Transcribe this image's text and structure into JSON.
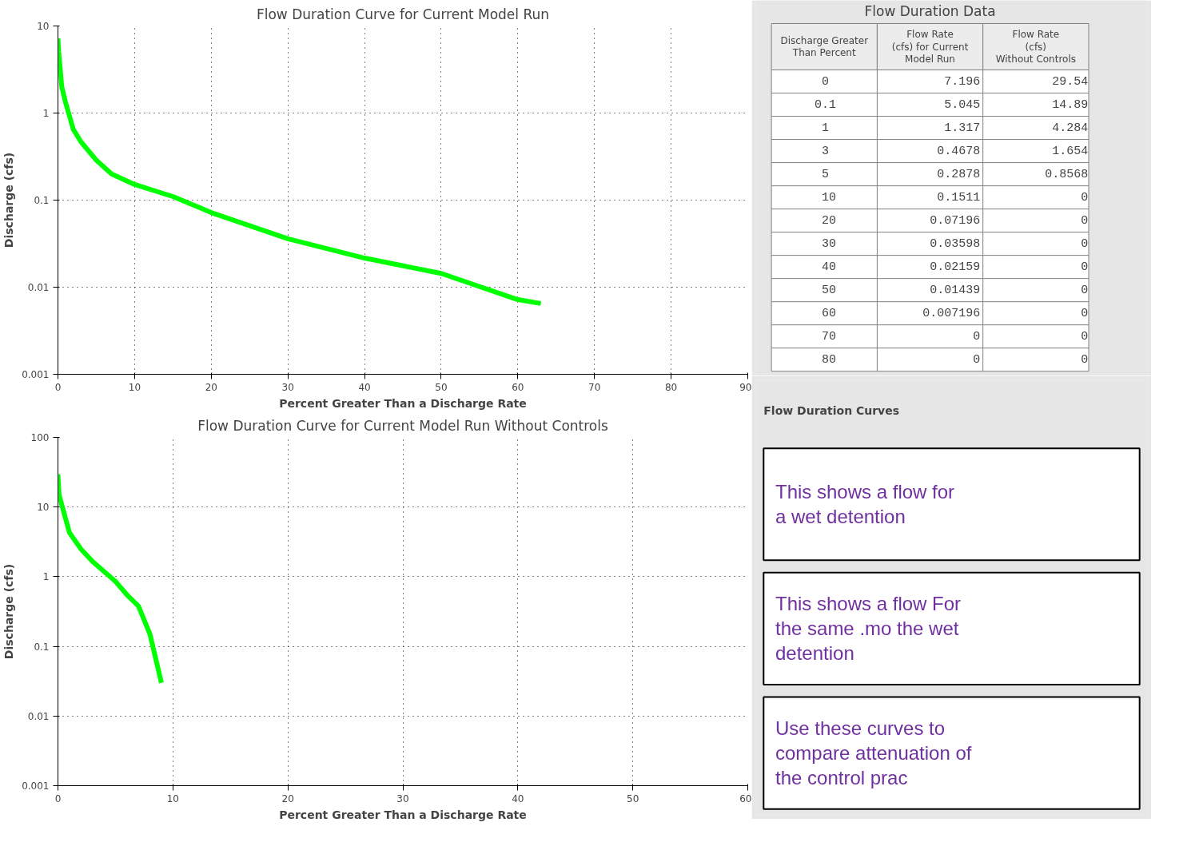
{
  "chart_data": [
    {
      "type": "line",
      "title": "Flow Duration Curve for Current Model Run",
      "xlabel": "Percent Greater Than a Discharge Rate",
      "ylabel": "Discharge (cfs)",
      "log": "y",
      "xlim": [
        0,
        90
      ],
      "xticks": [
        0,
        10,
        20,
        30,
        40,
        50,
        60,
        70,
        80,
        90
      ],
      "ylim": [
        0.001,
        10
      ],
      "yticks": [
        0.001,
        0.01,
        0.1,
        1,
        10
      ],
      "grid": true,
      "marker": "none",
      "line_style": "solid",
      "series": [
        {
          "color": "#00ff00",
          "x": [
            0,
            0.1,
            0.5,
            1,
            2,
            3,
            5,
            7,
            10,
            15,
            20,
            30,
            40,
            50,
            60,
            63
          ],
          "values": [
            7.196,
            5.045,
            2.0,
            1.317,
            0.65,
            0.4678,
            0.2878,
            0.2,
            0.1511,
            0.11,
            0.07196,
            0.03598,
            0.02159,
            0.01439,
            0.007196,
            0.0065
          ]
        }
      ]
    },
    {
      "type": "line",
      "title": "Flow Duration Curve for Current Model Run Without Controls",
      "xlabel": "Percent Greater Than a Discharge Rate",
      "ylabel": "Discharge (cfs)",
      "log": "y",
      "xlim": [
        0,
        60
      ],
      "xticks": [
        0,
        10,
        20,
        30,
        40,
        50,
        60
      ],
      "ylim": [
        0.001,
        100
      ],
      "yticks": [
        0.001,
        0.01,
        0.1,
        1,
        10,
        100
      ],
      "grid": true,
      "marker": "none",
      "line_style": "solid",
      "series": [
        {
          "color": "#00ff00",
          "x": [
            0,
            0.1,
            1,
            2,
            3,
            5,
            6,
            7,
            8,
            9
          ],
          "values": [
            29.54,
            14.89,
            4.284,
            2.5,
            1.654,
            0.8568,
            0.55,
            0.38,
            0.15,
            0.03
          ]
        }
      ]
    },
    {
      "type": "other",
      "title": "Flow Duration Data",
      "annotations": [
        "Discharge Greater Than Percent",
        "Flow Rate (cfs) for Current Model Run",
        "Flow Rate (cfs) Without Controls",
        "0 7.196 29.54",
        "0.1 5.045 14.89",
        "1 1.317 4.284",
        "3 0.4678 1.654",
        "5 0.2878 0.8568",
        "10 0.1511 0",
        "20 0.07196 0",
        "30 0.03598 0",
        "40 0.02159 0",
        "50 0.01439 0",
        "60 0.007196 0",
        "70 0 0",
        "80 0 0"
      ]
    },
    {
      "type": "other",
      "title": "Flow Duration Curves",
      "annotations": [
        "This shows a flow for a wet detention",
        "This shows a flow For the same .mo the wet detention",
        "Use these curves to compare attenuation of the control prac"
      ]
    }
  ]
}
